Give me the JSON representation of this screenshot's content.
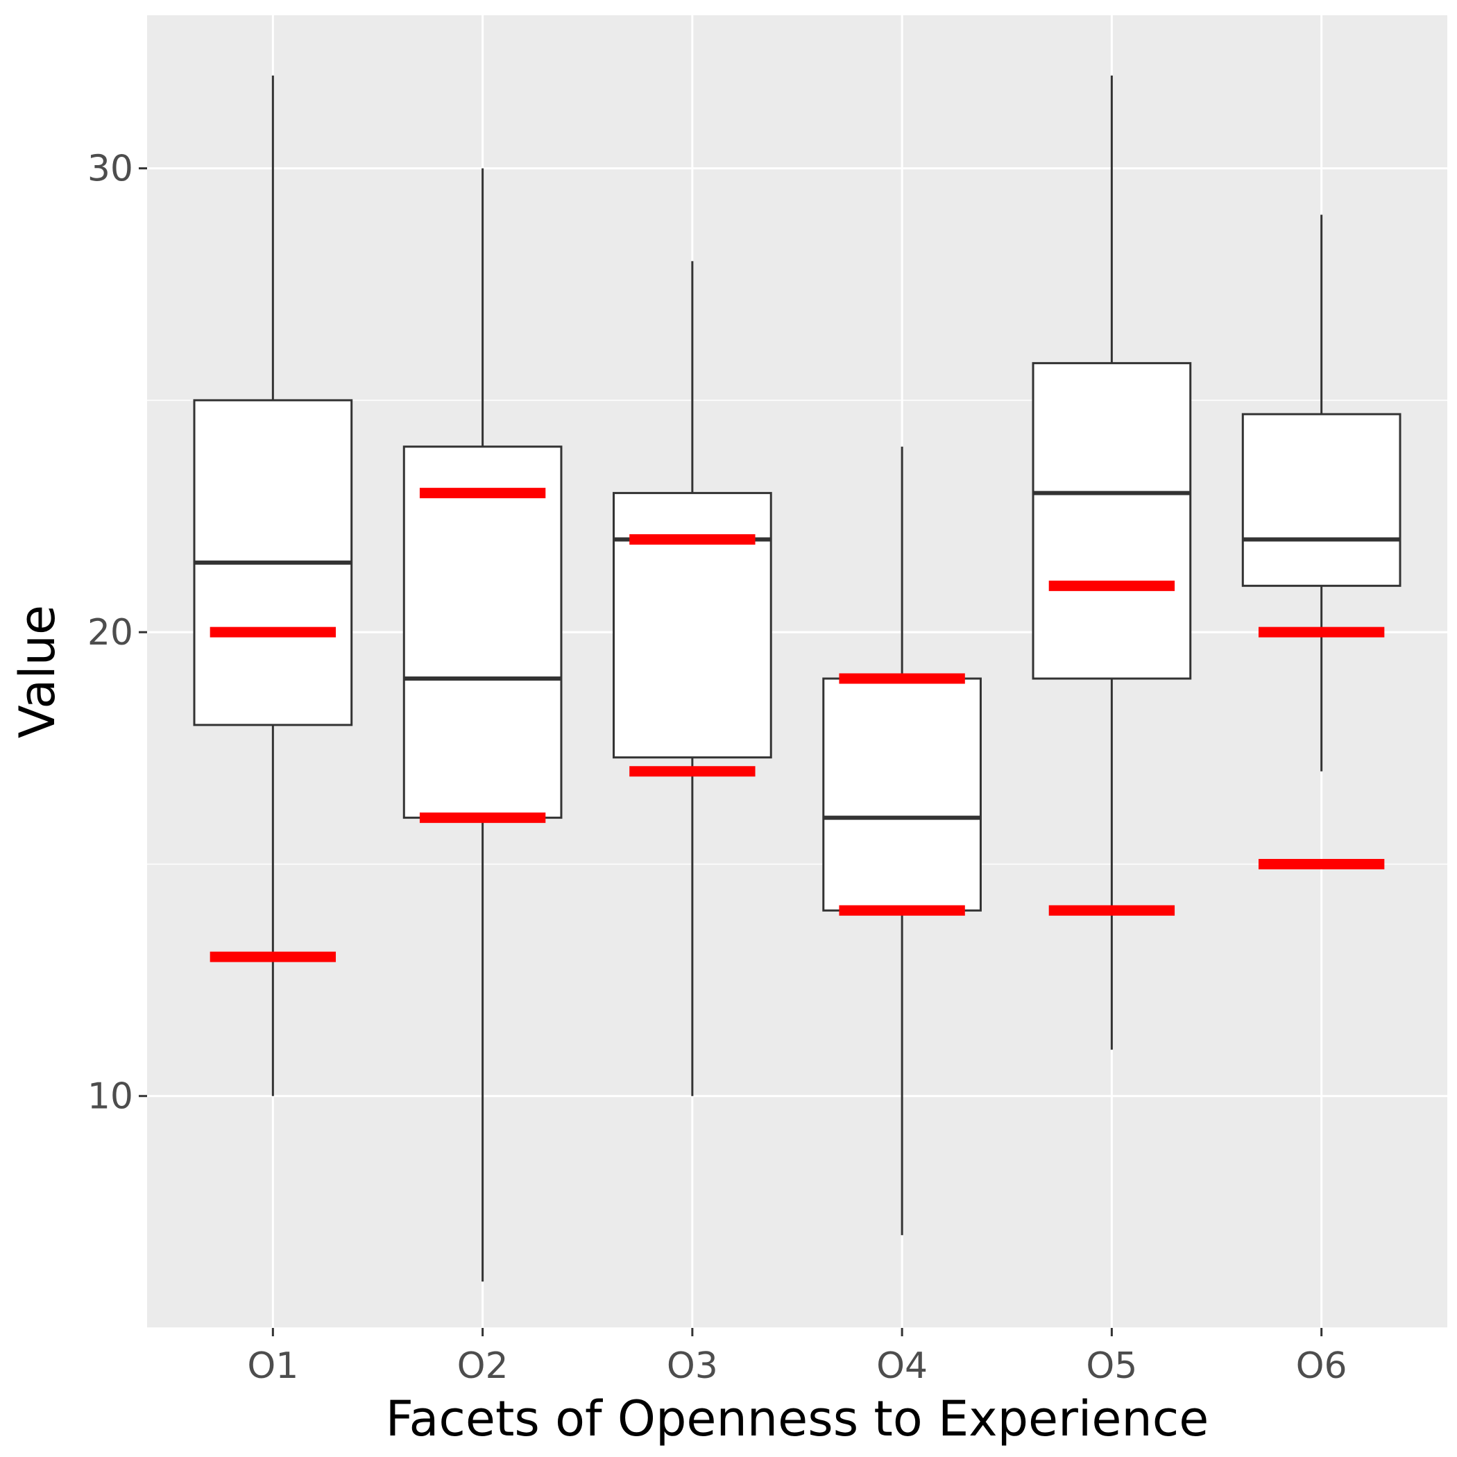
{
  "chart_data": {
    "type": "boxplot",
    "xlabel": "Facets of Openness to Experience",
    "ylabel": "Value",
    "ylim": [
      5,
      33.3
    ],
    "yticks": [
      10,
      20,
      30
    ],
    "grid": true,
    "legend": "none",
    "categories": [
      "O1",
      "O2",
      "O3",
      "O4",
      "O5",
      "O6"
    ],
    "boxes": [
      {
        "category": "O1",
        "whisker_low": 10,
        "q1": 18,
        "median": 21.5,
        "q3": 25,
        "whisker_high": 32
      },
      {
        "category": "O2",
        "whisker_low": 6,
        "q1": 16,
        "median": 19,
        "q3": 24,
        "whisker_high": 30
      },
      {
        "category": "O3",
        "whisker_low": 10,
        "q1": 17.3,
        "median": 22,
        "q3": 23,
        "whisker_high": 28
      },
      {
        "category": "O4",
        "whisker_low": 7,
        "q1": 14,
        "median": 16,
        "q3": 19,
        "whisker_high": 24
      },
      {
        "category": "O5",
        "whisker_low": 11,
        "q1": 19,
        "median": 23,
        "q3": 25.8,
        "whisker_high": 32
      },
      {
        "category": "O6",
        "whisker_low": 17,
        "q1": 21,
        "median": 22,
        "q3": 24.7,
        "whisker_high": 29
      }
    ],
    "reference_marks": [
      {
        "category": "O1",
        "values": [
          20,
          13
        ]
      },
      {
        "category": "O2",
        "values": [
          23,
          16
        ]
      },
      {
        "category": "O3",
        "values": [
          22,
          17
        ]
      },
      {
        "category": "O4",
        "values": [
          19,
          14
        ]
      },
      {
        "category": "O5",
        "values": [
          21,
          14
        ]
      },
      {
        "category": "O6",
        "values": [
          20,
          15
        ]
      }
    ],
    "colors": {
      "panel_background": "#ebebeb",
      "grid": "#ffffff",
      "box_fill": "#ffffff",
      "box_stroke": "#333333",
      "reference_mark": "#ff0000",
      "tick_text": "#4d4d4d",
      "title_text": "#000000"
    }
  }
}
